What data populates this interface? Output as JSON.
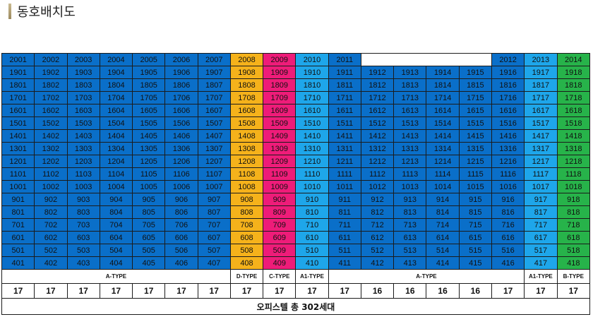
{
  "title": "동호배치도",
  "colors": {
    "A": "#0a6fc9",
    "D": "#f5b21b",
    "C": "#ee1c79",
    "A1": "#1ea6ea",
    "B": "#27b34a"
  },
  "column_types": [
    "A",
    "A",
    "A",
    "A",
    "A",
    "A",
    "A",
    "D",
    "C",
    "A1",
    "A",
    "A",
    "A",
    "A",
    "A",
    "A",
    "A1",
    "B"
  ],
  "top_row": [
    "2001",
    "2002",
    "2003",
    "2004",
    "2005",
    "2006",
    "2007",
    "2008",
    "2009",
    "2010",
    "2011",
    "",
    "",
    "",
    "",
    "2012",
    "2013",
    "2014"
  ],
  "rows": [
    [
      "1901",
      "1902",
      "1903",
      "1904",
      "1905",
      "1906",
      "1907",
      "1908",
      "1909",
      "1910",
      "1911",
      "1912",
      "1913",
      "1914",
      "1915",
      "1916",
      "1917",
      "1918"
    ],
    [
      "1801",
      "1802",
      "1803",
      "1804",
      "1805",
      "1806",
      "1807",
      "1808",
      "1809",
      "1810",
      "1811",
      "1812",
      "1813",
      "1814",
      "1815",
      "1816",
      "1817",
      "1818"
    ],
    [
      "1701",
      "1702",
      "1703",
      "1704",
      "1705",
      "1706",
      "1707",
      "1708",
      "1709",
      "1710",
      "1711",
      "1712",
      "1713",
      "1714",
      "1715",
      "1716",
      "1717",
      "1718"
    ],
    [
      "1601",
      "1602",
      "1603",
      "1604",
      "1605",
      "1606",
      "1607",
      "1608",
      "1609",
      "1610",
      "1611",
      "1612",
      "1613",
      "1614",
      "1615",
      "1616",
      "1617",
      "1618"
    ],
    [
      "1501",
      "1502",
      "1503",
      "1504",
      "1505",
      "1506",
      "1507",
      "1508",
      "1509",
      "1510",
      "1511",
      "1512",
      "1513",
      "1514",
      "1515",
      "1516",
      "1517",
      "1518"
    ],
    [
      "1401",
      "1402",
      "1403",
      "1404",
      "1405",
      "1406",
      "1407",
      "1408",
      "1409",
      "1410",
      "1411",
      "1412",
      "1413",
      "1414",
      "1415",
      "1416",
      "1417",
      "1418"
    ],
    [
      "1301",
      "1302",
      "1303",
      "1304",
      "1305",
      "1306",
      "1307",
      "1308",
      "1309",
      "1310",
      "1311",
      "1312",
      "1313",
      "1314",
      "1315",
      "1316",
      "1317",
      "1318"
    ],
    [
      "1201",
      "1202",
      "1203",
      "1204",
      "1205",
      "1206",
      "1207",
      "1208",
      "1209",
      "1210",
      "1211",
      "1212",
      "1213",
      "1214",
      "1215",
      "1216",
      "1217",
      "1218"
    ],
    [
      "1101",
      "1102",
      "1103",
      "1104",
      "1105",
      "1106",
      "1107",
      "1108",
      "1109",
      "1110",
      "1111",
      "1112",
      "1113",
      "1114",
      "1115",
      "1116",
      "1117",
      "1118"
    ],
    [
      "1001",
      "1002",
      "1003",
      "1004",
      "1005",
      "1006",
      "1007",
      "1008",
      "1009",
      "1010",
      "1011",
      "1012",
      "1013",
      "1014",
      "1015",
      "1016",
      "1017",
      "1018"
    ],
    [
      "901",
      "902",
      "903",
      "904",
      "905",
      "906",
      "907",
      "908",
      "909",
      "910",
      "911",
      "912",
      "913",
      "914",
      "915",
      "916",
      "917",
      "918"
    ],
    [
      "801",
      "802",
      "803",
      "804",
      "805",
      "806",
      "807",
      "808",
      "809",
      "810",
      "811",
      "812",
      "813",
      "814",
      "815",
      "816",
      "817",
      "818"
    ],
    [
      "701",
      "702",
      "703",
      "704",
      "705",
      "706",
      "707",
      "708",
      "709",
      "710",
      "711",
      "712",
      "713",
      "714",
      "715",
      "716",
      "717",
      "718"
    ],
    [
      "601",
      "602",
      "603",
      "604",
      "605",
      "606",
      "607",
      "608",
      "609",
      "610",
      "611",
      "612",
      "613",
      "614",
      "615",
      "616",
      "617",
      "618"
    ],
    [
      "501",
      "502",
      "503",
      "504",
      "505",
      "506",
      "507",
      "508",
      "509",
      "510",
      "511",
      "512",
      "513",
      "514",
      "515",
      "516",
      "517",
      "518"
    ],
    [
      "401",
      "402",
      "403",
      "404",
      "405",
      "406",
      "407",
      "408",
      "409",
      "410",
      "411",
      "412",
      "413",
      "414",
      "415",
      "416",
      "417",
      "418"
    ]
  ],
  "type_labels": [
    {
      "label": "A-TYPE",
      "span": 7
    },
    {
      "label": "D-TYPE",
      "span": 1
    },
    {
      "label": "C-TYPE",
      "span": 1
    },
    {
      "label": "A1-TYPE",
      "span": 1
    },
    {
      "label": "A-TYPE",
      "span": 6
    },
    {
      "label": "A1-TYPE",
      "span": 1
    },
    {
      "label": "B-TYPE",
      "span": 1
    }
  ],
  "counts": [
    "17",
    "17",
    "17",
    "17",
    "17",
    "17",
    "17",
    "17",
    "17",
    "17",
    "17",
    "16",
    "16",
    "16",
    "16",
    "17",
    "17",
    "17"
  ],
  "total": "오피스텔 총 302세대"
}
